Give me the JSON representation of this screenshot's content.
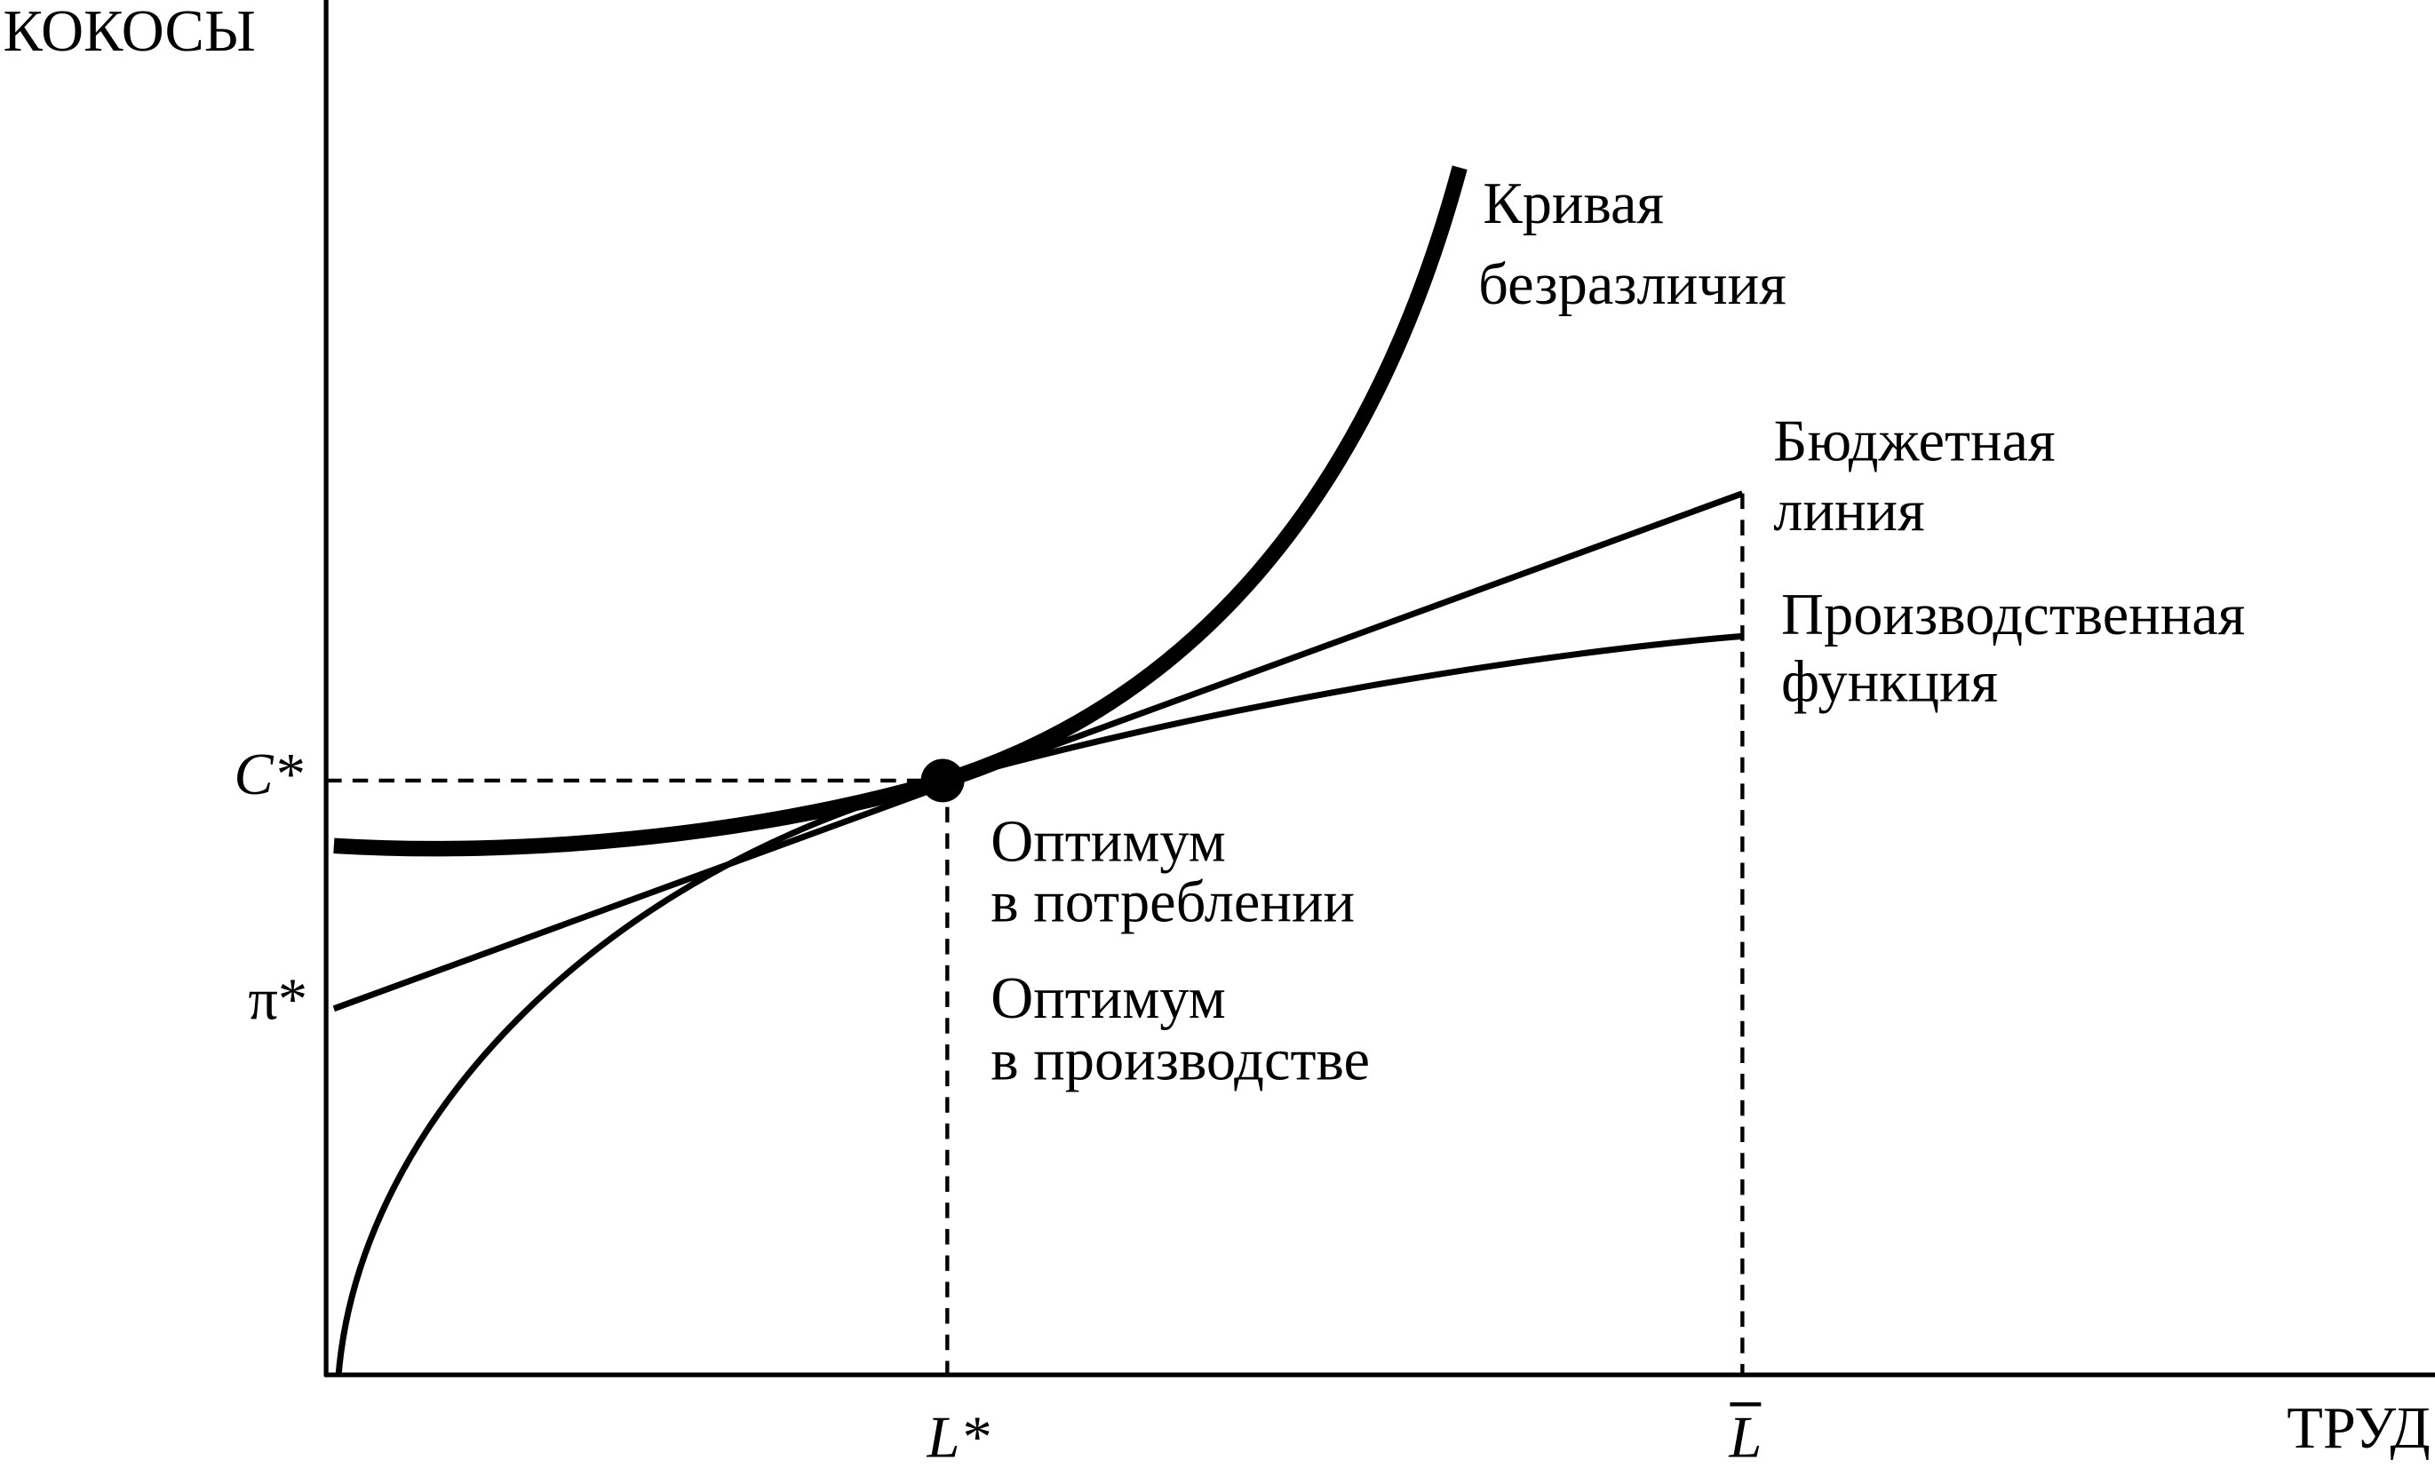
{
  "axes": {
    "y_label": "КОКОСЫ",
    "x_label": "ТРУД"
  },
  "ticks": {
    "y": [
      "C*",
      "π*"
    ],
    "x": [
      "L*",
      "L"
    ]
  },
  "curves": [
    {
      "label_lines": [
        "Кривая",
        "безразличия"
      ]
    },
    {
      "label_lines": [
        "Бюджетная",
        "линия"
      ]
    },
    {
      "label_lines": [
        "Производственная",
        "функция"
      ]
    }
  ],
  "annotations": [
    {
      "lines": [
        "Оптимум",
        "в потреблении"
      ]
    },
    {
      "lines": [
        "Оптимум",
        "в производстве"
      ]
    }
  ]
}
